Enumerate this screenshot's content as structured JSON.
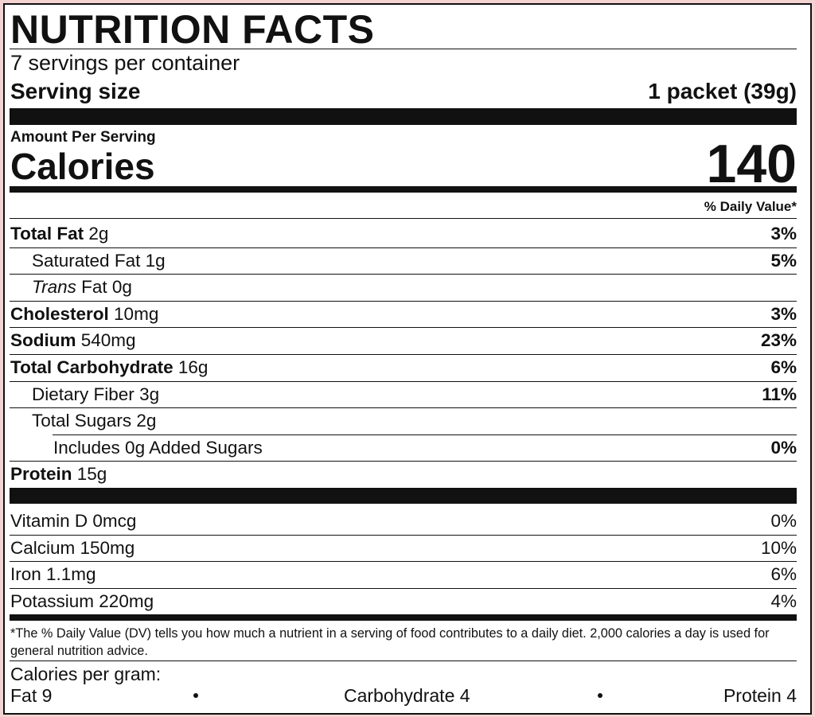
{
  "header": {
    "title": "NUTRITION FACTS",
    "servings": "7 servings per container",
    "serving_size_label": "Serving size",
    "serving_size": "1 packet (39g)"
  },
  "calories": {
    "label_small": "Amount Per Serving",
    "label": "Calories",
    "value": "140"
  },
  "daily_value_header": "% Daily Value*",
  "nutrients": [
    {
      "name": "Total Fat",
      "amount": "2g",
      "dv": "3%",
      "bold": true,
      "indent": 0
    },
    {
      "name": "Saturated Fat",
      "amount": "1g",
      "dv": "5%",
      "bold": false,
      "indent": 1
    },
    {
      "name": "Trans",
      "amount": "Fat 0g",
      "italic": true,
      "bold": false,
      "indent": 1
    },
    {
      "name": "Cholesterol",
      "amount": "10mg",
      "dv": "3%",
      "bold": true,
      "indent": 0
    },
    {
      "name": "Sodium",
      "amount": "540mg",
      "dv": "23%",
      "bold": true,
      "indent": 0
    },
    {
      "name": "Total Carbohydrate",
      "amount": "16g",
      "dv": "6%",
      "bold": true,
      "indent": 0
    },
    {
      "name": "Dietary Fiber",
      "amount": "3g",
      "dv": "11%",
      "bold": false,
      "indent": 1
    },
    {
      "name": "Total Sugars",
      "amount": "2g",
      "bold": false,
      "indent": 1
    },
    {
      "name": "Includes 0g Added Sugars",
      "amount": "",
      "dv": "0%",
      "bold": false,
      "indent": 2
    },
    {
      "name": "Protein",
      "amount": "15g",
      "bold": true,
      "indent": 0
    }
  ],
  "vitamins": [
    {
      "name": "Vitamin D 0mcg",
      "dv": "0%"
    },
    {
      "name": "Calcium 150mg",
      "dv": "10%"
    },
    {
      "name": "Iron 1.1mg",
      "dv": "6%"
    },
    {
      "name": "Potassium 220mg",
      "dv": "4%"
    }
  ],
  "footnote": "*The % Daily Value (DV) tells you how much a nutrient in a serving of food contributes to a daily diet. 2,000 calories a day is used for general nutrition advice.",
  "calories_per_gram": {
    "label": "Calories per gram:",
    "fat": "Fat 9",
    "carbohydrate": "Carbohydrate 4",
    "protein": "Protein 4"
  }
}
